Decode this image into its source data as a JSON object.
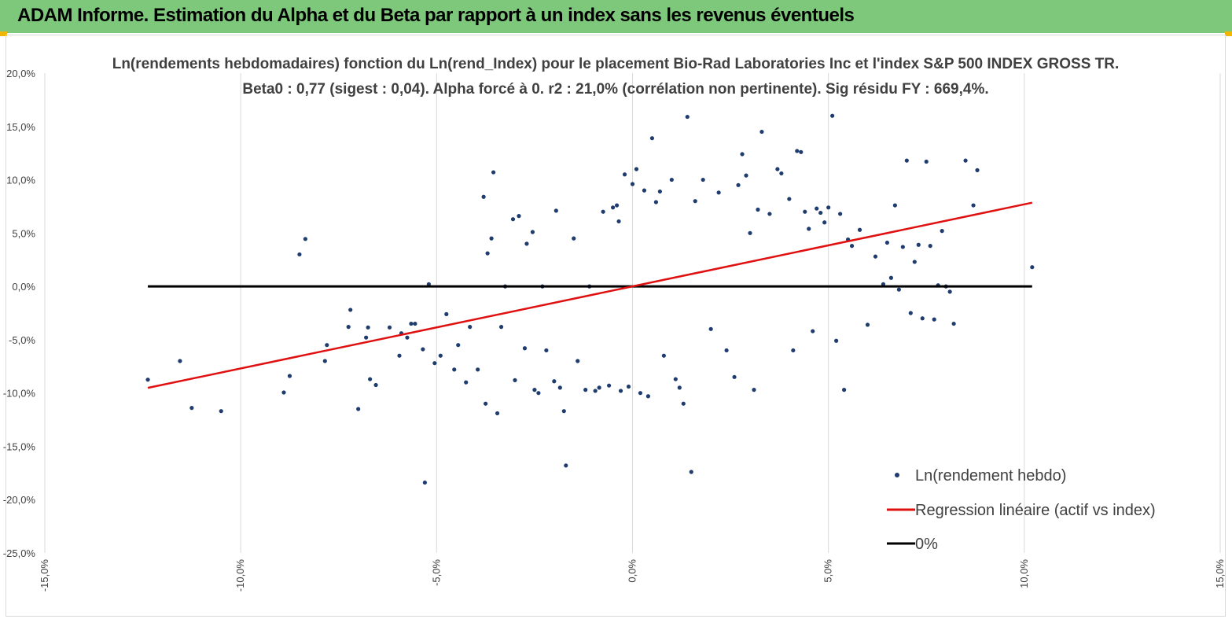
{
  "banner": {
    "title": "ADAM Informe. Estimation du Alpha et du Beta par rapport à un index sans les revenus éventuels"
  },
  "colors": {
    "banner_bg": "#7dc87a",
    "accent": "#f2b600",
    "points": "#1f3c6e",
    "regression": "#e01010",
    "zero_line": "#000000",
    "grid": "#d9d9d9",
    "text": "#404040"
  },
  "chart_data": {
    "type": "scatter",
    "title": [
      "Ln(rendements hebdomadaires) fonction du Ln(rend_Index) pour le placement Bio-Rad Laboratories Inc et l'index S&P 500 INDEX GROSS TR.",
      "Beta0 : 0,77 (sigest : 0,04). Alpha forcé à 0. r2 : 21,0% (corrélation non pertinente). Sig résidu FY : 669,4%."
    ],
    "xlim": [
      -0.15,
      0.15
    ],
    "ylim": [
      -0.25,
      0.2
    ],
    "x_ticks": [
      {
        "value": -0.15,
        "label": "-15,0%"
      },
      {
        "value": -0.1,
        "label": "-10,0%"
      },
      {
        "value": -0.05,
        "label": "-5,0%"
      },
      {
        "value": 0.0,
        "label": "0,0%"
      },
      {
        "value": 0.05,
        "label": "5,0%"
      },
      {
        "value": 0.1,
        "label": "10,0%"
      },
      {
        "value": 0.15,
        "label": "15,0%"
      }
    ],
    "y_ticks": [
      {
        "value": 0.2,
        "label": "20,0%"
      },
      {
        "value": 0.15,
        "label": "15,0%"
      },
      {
        "value": 0.1,
        "label": "10,0%"
      },
      {
        "value": 0.05,
        "label": "5,0%"
      },
      {
        "value": 0.0,
        "label": "0,0%"
      },
      {
        "value": -0.05,
        "label": "-5,0%"
      },
      {
        "value": -0.1,
        "label": "-10,0%"
      },
      {
        "value": -0.15,
        "label": "-15,0%"
      },
      {
        "value": -0.2,
        "label": "-20,0%"
      },
      {
        "value": -0.25,
        "label": "-25,0%"
      }
    ],
    "grid": {
      "vertical": true,
      "horizontal": false
    },
    "legend_position": "bottom-right",
    "series": [
      {
        "name": "Ln(rendement hebdo)",
        "kind": "scatter",
        "points": [
          [
            -0.1237,
            -0.0875
          ],
          [
            -0.1155,
            -0.07
          ],
          [
            -0.1125,
            -0.114
          ],
          [
            -0.105,
            -0.117
          ],
          [
            -0.089,
            -0.0995
          ],
          [
            -0.0875,
            -0.084
          ],
          [
            -0.085,
            0.03
          ],
          [
            -0.0835,
            0.0445
          ],
          [
            -0.078,
            -0.055
          ],
          [
            -0.0785,
            -0.07
          ],
          [
            -0.0725,
            -0.038
          ],
          [
            -0.072,
            -0.022
          ],
          [
            -0.07,
            -0.115
          ],
          [
            -0.068,
            -0.048
          ],
          [
            -0.0675,
            -0.0385
          ],
          [
            -0.067,
            -0.087
          ],
          [
            -0.0655,
            -0.0925
          ],
          [
            -0.062,
            -0.0385
          ],
          [
            -0.0595,
            -0.065
          ],
          [
            -0.059,
            -0.044
          ],
          [
            -0.0575,
            -0.048
          ],
          [
            -0.0565,
            -0.035
          ],
          [
            -0.0555,
            -0.035
          ],
          [
            -0.0535,
            -0.059
          ],
          [
            -0.053,
            -0.184
          ],
          [
            -0.052,
            0.002
          ],
          [
            -0.0505,
            -0.072
          ],
          [
            -0.049,
            -0.065
          ],
          [
            -0.0475,
            -0.026
          ],
          [
            -0.0455,
            -0.078
          ],
          [
            -0.0445,
            -0.055
          ],
          [
            -0.0425,
            -0.09
          ],
          [
            -0.0415,
            -0.038
          ],
          [
            -0.0395,
            -0.078
          ],
          [
            -0.038,
            0.084
          ],
          [
            -0.0375,
            -0.11
          ],
          [
            -0.037,
            0.031
          ],
          [
            -0.036,
            0.045
          ],
          [
            -0.0355,
            0.107
          ],
          [
            -0.0345,
            -0.119
          ],
          [
            -0.0335,
            -0.038
          ],
          [
            -0.0325,
            0.0
          ],
          [
            -0.0305,
            0.063
          ],
          [
            -0.03,
            -0.088
          ],
          [
            -0.029,
            0.066
          ],
          [
            -0.0275,
            -0.058
          ],
          [
            -0.027,
            0.04
          ],
          [
            -0.0255,
            0.051
          ],
          [
            -0.025,
            -0.097
          ],
          [
            -0.024,
            -0.1
          ],
          [
            -0.023,
            0.0
          ],
          [
            -0.022,
            -0.06
          ],
          [
            -0.02,
            -0.089
          ],
          [
            -0.0195,
            0.071
          ],
          [
            -0.0185,
            -0.095
          ],
          [
            -0.0175,
            -0.117
          ],
          [
            -0.017,
            -0.168
          ],
          [
            -0.015,
            0.045
          ],
          [
            -0.014,
            -0.07
          ],
          [
            -0.012,
            -0.097
          ],
          [
            -0.011,
            0.0
          ],
          [
            -0.0095,
            -0.098
          ],
          [
            -0.0085,
            -0.095
          ],
          [
            -0.0075,
            0.07
          ],
          [
            -0.006,
            -0.093
          ],
          [
            -0.005,
            0.074
          ],
          [
            -0.004,
            0.076
          ],
          [
            -0.0035,
            0.061
          ],
          [
            -0.003,
            -0.098
          ],
          [
            -0.002,
            0.105
          ],
          [
            -0.001,
            -0.094
          ],
          [
            0.0,
            0.096
          ],
          [
            0.001,
            0.11
          ],
          [
            0.002,
            -0.1
          ],
          [
            0.003,
            0.09
          ],
          [
            0.004,
            -0.103
          ],
          [
            0.005,
            0.139
          ],
          [
            0.006,
            0.079
          ],
          [
            0.007,
            0.089
          ],
          [
            0.008,
            -0.065
          ],
          [
            0.01,
            0.1
          ],
          [
            0.011,
            -0.087
          ],
          [
            0.012,
            -0.095
          ],
          [
            0.013,
            -0.11
          ],
          [
            0.014,
            0.159
          ],
          [
            0.015,
            -0.174
          ],
          [
            0.016,
            0.08
          ],
          [
            0.018,
            0.1
          ],
          [
            0.02,
            -0.04
          ],
          [
            0.022,
            0.088
          ],
          [
            0.024,
            -0.06
          ],
          [
            0.026,
            -0.085
          ],
          [
            0.027,
            0.095
          ],
          [
            0.028,
            0.124
          ],
          [
            0.029,
            0.104
          ],
          [
            0.03,
            0.05
          ],
          [
            0.031,
            -0.097
          ],
          [
            0.032,
            0.072
          ],
          [
            0.033,
            0.145
          ],
          [
            0.035,
            0.068
          ],
          [
            0.037,
            0.11
          ],
          [
            0.038,
            0.106
          ],
          [
            0.04,
            0.082
          ],
          [
            0.041,
            -0.06
          ],
          [
            0.042,
            0.127
          ],
          [
            0.043,
            0.126
          ],
          [
            0.044,
            0.07
          ],
          [
            0.045,
            0.054
          ],
          [
            0.046,
            -0.042
          ],
          [
            0.047,
            0.073
          ],
          [
            0.048,
            0.069
          ],
          [
            0.049,
            0.06
          ],
          [
            0.05,
            0.074
          ],
          [
            0.051,
            0.16
          ],
          [
            0.052,
            -0.051
          ],
          [
            0.053,
            0.068
          ],
          [
            0.054,
            -0.097
          ],
          [
            0.055,
            0.044
          ],
          [
            0.056,
            0.038
          ],
          [
            0.058,
            0.053
          ],
          [
            0.06,
            -0.036
          ],
          [
            0.062,
            0.028
          ],
          [
            0.064,
            0.002
          ],
          [
            0.065,
            0.041
          ],
          [
            0.066,
            0.008
          ],
          [
            0.067,
            0.076
          ],
          [
            0.068,
            -0.003
          ],
          [
            0.069,
            0.037
          ],
          [
            0.07,
            0.118
          ],
          [
            0.071,
            -0.025
          ],
          [
            0.072,
            0.023
          ],
          [
            0.073,
            0.039
          ],
          [
            0.074,
            -0.03
          ],
          [
            0.075,
            0.117
          ],
          [
            0.076,
            0.038
          ],
          [
            0.077,
            -0.031
          ],
          [
            0.078,
            0.001
          ],
          [
            0.079,
            0.052
          ],
          [
            0.08,
            0.0
          ],
          [
            0.081,
            -0.005
          ],
          [
            0.082,
            -0.035
          ],
          [
            0.085,
            0.118
          ],
          [
            0.087,
            0.076
          ],
          [
            0.088,
            0.109
          ],
          [
            0.102,
            0.018
          ]
        ]
      },
      {
        "name": "Regression linéaire (actif vs index)",
        "kind": "line",
        "points": [
          [
            -0.1237,
            -0.0952
          ],
          [
            0.102,
            0.0785
          ]
        ]
      },
      {
        "name": "0%",
        "kind": "line",
        "points": [
          [
            -0.1237,
            0.0
          ],
          [
            0.102,
            0.0
          ]
        ]
      }
    ]
  }
}
